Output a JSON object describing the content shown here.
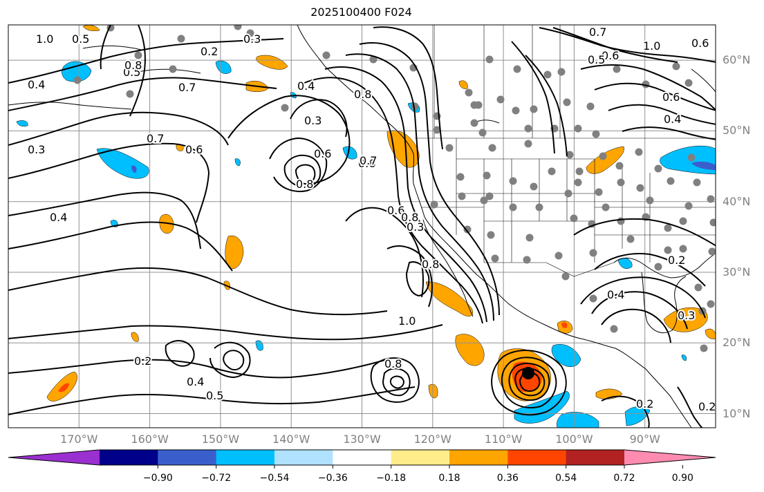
{
  "title": "2025100400 F024",
  "map": {
    "projection": "cylindrical",
    "lon_range": [
      -180,
      -80
    ],
    "lat_range": [
      8,
      65
    ],
    "grid": true,
    "lat_labels": [
      {
        "lat": 60,
        "text": "60°N"
      },
      {
        "lat": 50,
        "text": "50°N"
      },
      {
        "lat": 40,
        "text": "40°N"
      },
      {
        "lat": 30,
        "text": "30°N"
      },
      {
        "lat": 20,
        "text": "20°N"
      },
      {
        "lat": 10,
        "text": "10°N"
      }
    ],
    "lon_labels": [
      {
        "lon": -170,
        "text": "170°W"
      },
      {
        "lon": -160,
        "text": "160°W"
      },
      {
        "lon": -150,
        "text": "150°W"
      },
      {
        "lon": -140,
        "text": "140°W"
      },
      {
        "lon": -130,
        "text": "130°W"
      },
      {
        "lon": -120,
        "text": "120°W"
      },
      {
        "lon": -110,
        "text": "110°W"
      },
      {
        "lon": -100,
        "text": "100°W"
      },
      {
        "lon": -90,
        "text": "90°W"
      }
    ],
    "contour_labels": [
      "1.0",
      "0.5",
      "0.4",
      "0.7",
      "0.5",
      "0.4",
      "0.3",
      "0.8",
      "0.6",
      "0.7",
      "0.3",
      "0.6",
      "0.8",
      "0.4",
      "0.6",
      "0.2",
      "0.3",
      "0.2",
      "0.4",
      "0.5",
      "1.0",
      "0.8",
      "0.7",
      "0.6",
      "0.6",
      "1.0",
      "0.5",
      "0.4",
      "0.2",
      "0.3",
      "0.2",
      "0.2",
      "0.4",
      "0.8",
      "0.6",
      "0.8",
      "0.3",
      "0.8",
      "0.7",
      "0.6"
    ],
    "storm_center": {
      "lon": -105.5,
      "lat": 15.5
    }
  },
  "colorbar": {
    "colors": [
      "#9b30d0",
      "#00008b",
      "#3a5fcd",
      "#00bfff",
      "#b0e2ff",
      "#ffffff",
      "#ffec8b",
      "#ffa500",
      "#ff4500",
      "#b22222",
      "#ff8cb0"
    ],
    "ticks": [
      "−0.90",
      "−0.72",
      "−0.54",
      "−0.36",
      "−0.18",
      "0.18",
      "0.36",
      "0.54",
      "0.72",
      "0.90"
    ]
  }
}
